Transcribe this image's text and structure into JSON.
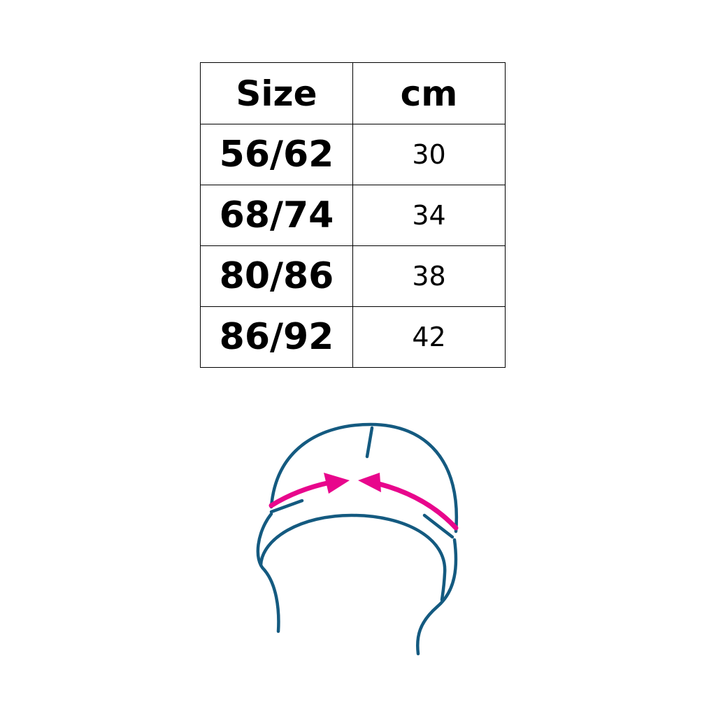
{
  "table": {
    "headers": [
      "Size",
      "cm"
    ],
    "rows": [
      {
        "size": "56/62",
        "cm": "30"
      },
      {
        "size": "68/74",
        "cm": "34"
      },
      {
        "size": "80/86",
        "cm": "38"
      },
      {
        "size": "86/92",
        "cm": "42"
      }
    ]
  },
  "illustration": {
    "icon": "hat-circumference-measurement-icon",
    "colors": {
      "outline": "#145a80",
      "arrow": "#e8068c"
    }
  }
}
